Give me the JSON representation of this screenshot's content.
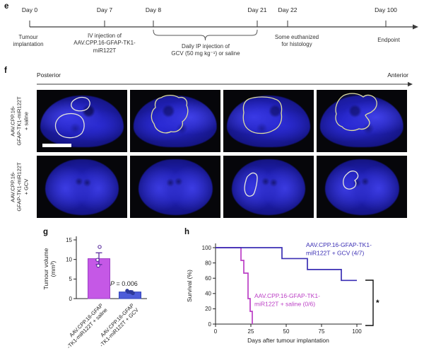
{
  "figure": {
    "panel_e": {
      "label": "e",
      "events": [
        {
          "day": "Day 0",
          "lines": [
            "Tumour",
            "implantation"
          ]
        },
        {
          "day": "Day 7",
          "lines": [
            "IV injection of",
            "AAV.CPP.16-GFAP-TK1-",
            "miR122T"
          ]
        },
        {
          "day": "Day 8",
          "lines": []
        },
        {
          "day": "Day 21",
          "lines": []
        },
        {
          "day": "Day 22",
          "lines": [
            "Some euthanized",
            "for histology"
          ]
        },
        {
          "day": "Day 100",
          "lines": [
            "Endpoint"
          ]
        }
      ],
      "bracket_lines": [
        "Daily IP injection of",
        "GCV (50 mg kg⁻¹) or saline"
      ]
    },
    "panel_f": {
      "label": "f",
      "posterior": "Posterior",
      "anterior": "Anterior",
      "rows": [
        {
          "label_lines": [
            "AAV.CPP.16-",
            "GFAP-TK1-miR122T",
            "+ saline"
          ]
        },
        {
          "label_lines": [
            "AAV.CPP.16-",
            "GFAP-TK1-miR122T",
            "+ GCV"
          ]
        }
      ]
    },
    "panel_g": {
      "label": "g"
    },
    "panel_h": {
      "label": "h"
    }
  },
  "chart_data": [
    {
      "type": "bar",
      "panel": "g",
      "ylabel_lines": [
        "Tumour volume",
        "(mm³)"
      ],
      "ylim": [
        0,
        15
      ],
      "yticks": [
        0,
        5,
        10,
        15
      ],
      "categories": [
        [
          "AAV.CPP.16-GFAP",
          "-TK1-miR122T + saline"
        ],
        [
          "AAV.CPP.16-GFAP",
          "-TK1-miR122T + GCV"
        ]
      ],
      "values": [
        10.2,
        1.7
      ],
      "errors": [
        1.5,
        0.3
      ],
      "points": [
        [
          13.2,
          9.9,
          8.4
        ],
        [
          2.0,
          1.7,
          1.4
        ]
      ],
      "bar_fills": [
        "#c558e6",
        "#4d5cd9"
      ],
      "bar_strokes": [
        "#9c3ec4",
        "#3243bb"
      ],
      "accent_colors": [
        "#5b2d9e",
        "#2b3694"
      ],
      "point_fills": [
        "#ffffff",
        "#2e3a9e"
      ],
      "p_label_prefix": "P",
      "p_label_rest": " = 0.006"
    },
    {
      "type": "line",
      "subtype": "kaplan-meier",
      "panel": "h",
      "xlabel": "Days after tumour implantation",
      "ylabel": "Survival (%)",
      "xlim": [
        0,
        100
      ],
      "ylim": [
        0,
        100
      ],
      "xticks": [
        0,
        25,
        50,
        75,
        100
      ],
      "yticks": [
        0,
        20,
        40,
        60,
        80,
        100
      ],
      "series": [
        {
          "name": "AAV.CPP.16-GFAP-TK1-miR122T + saline (0/6)",
          "label_lines": [
            "AAV.CPP.16-GFAP-TK1-",
            "miR122T + saline (0/6)"
          ],
          "color": "#bb3ec5",
          "points": [
            [
              0,
              100
            ],
            [
              18,
              100
            ],
            [
              18,
              83.3
            ],
            [
              20,
              83.3
            ],
            [
              20,
              66.7
            ],
            [
              23,
              66.7
            ],
            [
              23,
              33.3
            ],
            [
              24.5,
              33.3
            ],
            [
              24.5,
              16.7
            ],
            [
              26,
              16.7
            ],
            [
              26,
              0
            ]
          ]
        },
        {
          "name": "AAV.CPP.16-GFAP-TK1-miR122T + GCV (4/7)",
          "label_lines": [
            "AAV.CPP.16-GFAP-TK1-",
            "miR122T + GCV (4/7)"
          ],
          "color": "#3b2fb4",
          "points": [
            [
              0,
              100
            ],
            [
              47,
              100
            ],
            [
              47,
              85.7
            ],
            [
              65,
              85.7
            ],
            [
              65,
              71.4
            ],
            [
              89,
              71.4
            ],
            [
              89,
              57.1
            ],
            [
              100,
              57.1
            ]
          ]
        }
      ],
      "significance": "*"
    }
  ]
}
